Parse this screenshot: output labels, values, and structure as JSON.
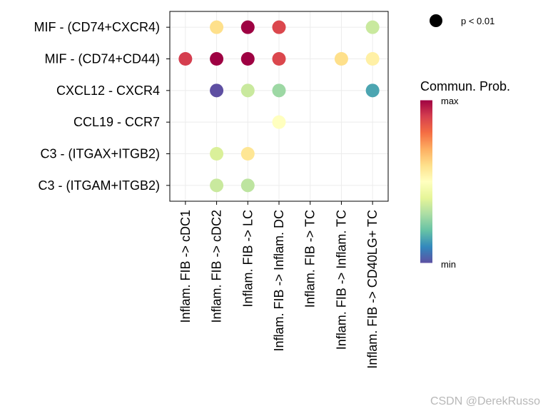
{
  "chart_data": {
    "type": "scatter",
    "subtype": "dot-matrix",
    "y_categories": [
      "MIF - (CD74+CXCR4)",
      "MIF - (CD74+CD44)",
      "CXCL12 - CXCR4",
      "CCL19 - CCR7",
      "C3 - (ITGAX+ITGB2)",
      "C3 - (ITGAM+ITGB2)"
    ],
    "x_categories": [
      "Inflam. FIB -> cDC1",
      "Inflam. FIB -> cDC2",
      "Inflam. FIB -> LC",
      "Inflam. FIB -> Inflam. DC",
      "Inflam. FIB -> TC",
      "Inflam. FIB -> Inflam. TC",
      "Inflam. FIB -> CD40LG+ TC"
    ],
    "value_scale": "relative communication probability, 0 = min, 1 = max",
    "points": [
      {
        "y": "MIF - (CD74+CXCR4)",
        "x": "Inflam. FIB -> cDC2",
        "value": 0.6
      },
      {
        "y": "MIF - (CD74+CXCR4)",
        "x": "Inflam. FIB -> LC",
        "value": 1.0
      },
      {
        "y": "MIF - (CD74+CXCR4)",
        "x": "Inflam. FIB -> Inflam. DC",
        "value": 0.88
      },
      {
        "y": "MIF - (CD74+CXCR4)",
        "x": "Inflam. FIB -> CD40LG+ TC",
        "value": 0.35
      },
      {
        "y": "MIF - (CD74+CD44)",
        "x": "Inflam. FIB -> cDC1",
        "value": 0.9
      },
      {
        "y": "MIF - (CD74+CD44)",
        "x": "Inflam. FIB -> cDC2",
        "value": 1.0
      },
      {
        "y": "MIF - (CD74+CD44)",
        "x": "Inflam. FIB -> LC",
        "value": 1.0
      },
      {
        "y": "MIF - (CD74+CD44)",
        "x": "Inflam. FIB -> Inflam. DC",
        "value": 0.88
      },
      {
        "y": "MIF - (CD74+CD44)",
        "x": "Inflam. FIB -> Inflam. TC",
        "value": 0.6
      },
      {
        "y": "MIF - (CD74+CD44)",
        "x": "Inflam. FIB -> CD40LG+ TC",
        "value": 0.55
      },
      {
        "y": "CXCL12 - CXCR4",
        "x": "Inflam. FIB -> cDC2",
        "value": 0.0
      },
      {
        "y": "CXCL12 - CXCR4",
        "x": "Inflam. FIB -> LC",
        "value": 0.35
      },
      {
        "y": "CXCL12 - CXCR4",
        "x": "Inflam. FIB -> Inflam. DC",
        "value": 0.28
      },
      {
        "y": "CXCL12 - CXCR4",
        "x": "Inflam. FIB -> CD40LG+ TC",
        "value": 0.15
      },
      {
        "y": "CCL19 - CCR7",
        "x": "Inflam. FIB -> Inflam. DC",
        "value": 0.5
      },
      {
        "y": "C3 - (ITGAX+ITGB2)",
        "x": "Inflam. FIB -> cDC2",
        "value": 0.38
      },
      {
        "y": "C3 - (ITGAX+ITGB2)",
        "x": "Inflam. FIB -> LC",
        "value": 0.58
      },
      {
        "y": "C3 - (ITGAM+ITGB2)",
        "x": "Inflam. FIB -> cDC2",
        "value": 0.35
      },
      {
        "y": "C3 - (ITGAM+ITGB2)",
        "x": "Inflam. FIB -> LC",
        "value": 0.33
      }
    ],
    "colorbar": {
      "title": "Commun. Prob.",
      "max_label": "max",
      "min_label": "min",
      "colors": [
        "#5e4fa2",
        "#3288bd",
        "#66c2a5",
        "#abdda4",
        "#e6f598",
        "#ffffbf",
        "#fee08b",
        "#fdae61",
        "#f46d43",
        "#d53e4f",
        "#9e0142"
      ]
    },
    "size_legend": {
      "label": "p < 0.01"
    },
    "grid": true,
    "legend_position": "right"
  },
  "watermark": "CSDN @DerekRusso"
}
